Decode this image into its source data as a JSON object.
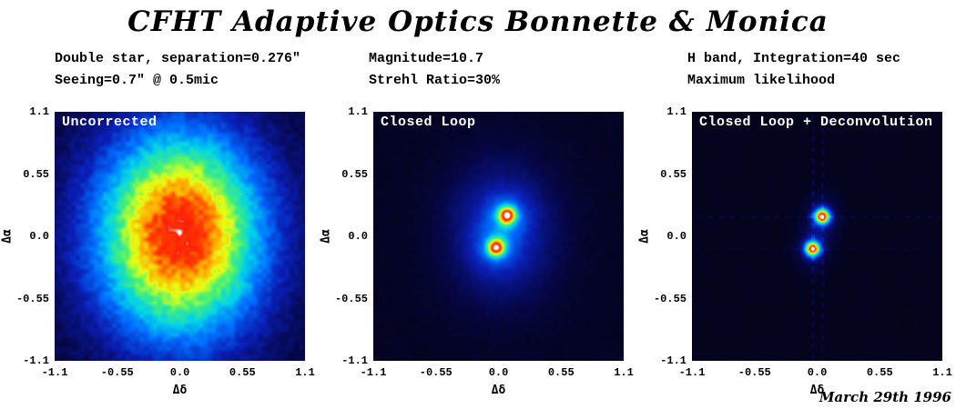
{
  "page": {
    "title": "CFHT Adaptive Optics Bonnette & Monica",
    "date": "March 29th 1996",
    "background": "#ffffff",
    "text_color": "#000000"
  },
  "header_columns": [
    {
      "line1": "Double star, separation=0.276\"",
      "line2": "Seeing=0.7\" @ 0.5mic"
    },
    {
      "line1": "Magnitude=10.7",
      "line2": "Strehl Ratio=30%"
    },
    {
      "line1": "H band, Integration=40 sec",
      "line2": "Maximum likelihood"
    }
  ],
  "colormap": {
    "name": "rainbow-on-black",
    "stops": [
      [
        0.0,
        3,
        3,
        18
      ],
      [
        0.08,
        6,
        6,
        70
      ],
      [
        0.2,
        10,
        30,
        180
      ],
      [
        0.33,
        0,
        110,
        255
      ],
      [
        0.45,
        0,
        210,
        235
      ],
      [
        0.57,
        70,
        240,
        120
      ],
      [
        0.68,
        230,
        255,
        20
      ],
      [
        0.78,
        255,
        170,
        0
      ],
      [
        0.87,
        255,
        60,
        0
      ],
      [
        0.94,
        255,
        30,
        10
      ],
      [
        0.975,
        255,
        120,
        90
      ],
      [
        1.0,
        255,
        255,
        255
      ]
    ]
  },
  "chart_data": [
    {
      "type": "heatmap",
      "title": "Uncorrected",
      "xlabel": "Δδ",
      "ylabel": "Δα",
      "xlim": [
        -1.1,
        1.1
      ],
      "ylim": [
        -1.1,
        1.1
      ],
      "xtick_labels": [
        "-1.1",
        "-0.55",
        "0.0",
        "0.55",
        "1.1"
      ],
      "ytick_labels": [
        "1.1",
        "0.55",
        "0.0",
        "-0.55",
        "-1.1"
      ],
      "grid": false,
      "base": 0.06,
      "noise": 0.12,
      "seed": 7,
      "artifacts": false,
      "sources": [
        {
          "kind": "halo",
          "x": 0.0,
          "y": 0.02,
          "sx": 0.5,
          "sy": 0.62,
          "peak": 0.88
        },
        {
          "kind": "star",
          "x": 0.0,
          "y": 0.02,
          "sx": 0.02,
          "sy": 0.02,
          "peak": 0.12
        }
      ]
    },
    {
      "type": "heatmap",
      "title": "Closed Loop",
      "xlabel": "Δδ",
      "ylabel": "Δα",
      "xlim": [
        -1.1,
        1.1
      ],
      "ylim": [
        -1.1,
        1.1
      ],
      "xtick_labels": [
        "-1.1",
        "-0.55",
        "0.0",
        "0.55",
        "1.1"
      ],
      "ytick_labels": [
        "1.1",
        "0.55",
        "0.0",
        "-0.55",
        "-1.1"
      ],
      "grid": false,
      "base": 0.028,
      "noise": 0.05,
      "seed": 13,
      "artifacts": false,
      "sources": [
        {
          "kind": "halo",
          "x": 0.03,
          "y": 0.04,
          "sx": 0.34,
          "sy": 0.44,
          "peak": 0.2
        },
        {
          "kind": "star",
          "x": 0.075,
          "y": 0.185,
          "sx": 0.052,
          "sy": 0.052,
          "peak": 0.68
        },
        {
          "kind": "halo",
          "x": 0.075,
          "y": 0.185,
          "sx": 0.13,
          "sy": 0.13,
          "peak": 0.16
        },
        {
          "kind": "star",
          "x": -0.02,
          "y": -0.1,
          "sx": 0.052,
          "sy": 0.052,
          "peak": 0.66
        },
        {
          "kind": "halo",
          "x": -0.02,
          "y": -0.1,
          "sx": 0.13,
          "sy": 0.13,
          "peak": 0.15
        }
      ]
    },
    {
      "type": "heatmap",
      "title": "Closed Loop + Deconvolution",
      "xlabel": "Δδ",
      "ylabel": "Δα",
      "xlim": [
        -1.1,
        1.1
      ],
      "ylim": [
        -1.1,
        1.1
      ],
      "xtick_labels": [
        "-1.1",
        "-0.55",
        "0.0",
        "0.55",
        "1.1"
      ],
      "ytick_labels": [
        "1.1",
        "0.55",
        "0.0",
        "-0.55",
        "-1.1"
      ],
      "grid": false,
      "base": 0.018,
      "noise": 0.03,
      "seed": 29,
      "artifacts": true,
      "sources": [
        {
          "kind": "star",
          "x": 0.045,
          "y": 0.175,
          "sx": 0.045,
          "sy": 0.045,
          "peak": 0.87
        },
        {
          "kind": "halo",
          "x": 0.045,
          "y": 0.175,
          "sx": 0.1,
          "sy": 0.13,
          "peak": 0.13
        },
        {
          "kind": "star",
          "x": -0.04,
          "y": -0.11,
          "sx": 0.045,
          "sy": 0.045,
          "peak": 0.85
        },
        {
          "kind": "halo",
          "x": -0.04,
          "y": -0.11,
          "sx": 0.1,
          "sy": 0.13,
          "peak": 0.12
        }
      ]
    }
  ]
}
